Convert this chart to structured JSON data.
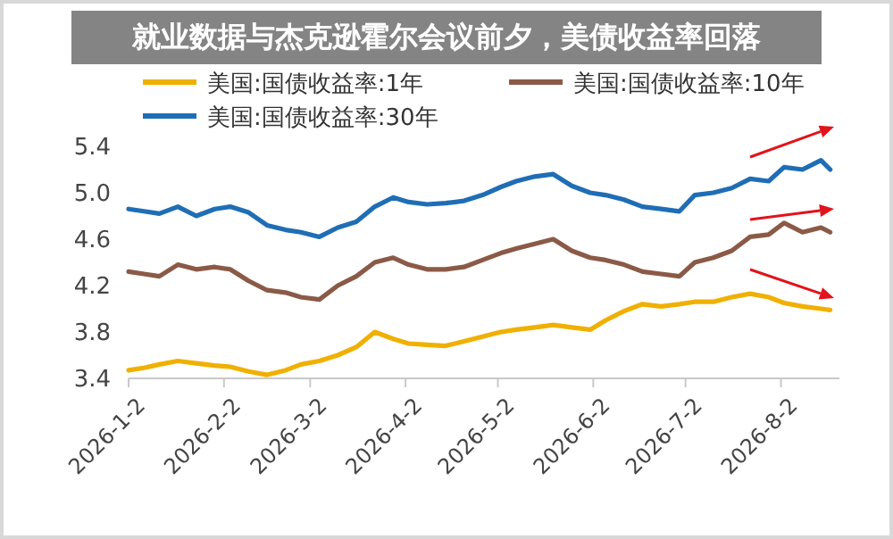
{
  "chart_data": {
    "type": "line",
    "title": "就业数据与杰克逊霍尔会议前夕，美债收益率回落",
    "x": [
      "2026-01-02",
      "2026-01-07",
      "2026-01-12",
      "2026-01-18",
      "2026-01-24",
      "2026-01-30",
      "2026-02-04",
      "2026-02-10",
      "2026-02-16",
      "2026-02-22",
      "2026-02-27",
      "2026-03-05",
      "2026-03-11",
      "2026-03-17",
      "2026-03-23",
      "2026-03-29",
      "2026-04-03",
      "2026-04-09",
      "2026-04-15",
      "2026-04-21",
      "2026-04-27",
      "2026-05-03",
      "2026-05-08",
      "2026-05-14",
      "2026-05-20",
      "2026-05-26",
      "2026-06-01",
      "2026-06-06",
      "2026-06-12",
      "2026-06-18",
      "2026-06-24",
      "2026-06-30",
      "2026-07-05",
      "2026-07-11",
      "2026-07-17",
      "2026-07-23",
      "2026-07-29",
      "2026-08-03",
      "2026-08-09",
      "2026-08-15",
      "2026-08-18"
    ],
    "series": [
      {
        "name": "美国:国债收益率:1年",
        "color": "#f0b000",
        "values": [
          3.47,
          3.49,
          3.52,
          3.55,
          3.53,
          3.51,
          3.5,
          3.46,
          3.43,
          3.47,
          3.52,
          3.55,
          3.6,
          3.67,
          3.8,
          3.74,
          3.7,
          3.69,
          3.68,
          3.72,
          3.76,
          3.8,
          3.82,
          3.84,
          3.86,
          3.84,
          3.82,
          3.9,
          3.98,
          4.04,
          4.02,
          4.04,
          4.06,
          4.06,
          4.1,
          4.13,
          4.1,
          4.05,
          4.02,
          4.0,
          3.99
        ]
      },
      {
        "name": "美国:国债收益率:10年",
        "color": "#8b5a47",
        "values": [
          4.32,
          4.3,
          4.28,
          4.38,
          4.34,
          4.36,
          4.34,
          4.24,
          4.16,
          4.14,
          4.1,
          4.08,
          4.2,
          4.28,
          4.4,
          4.44,
          4.38,
          4.34,
          4.34,
          4.36,
          4.42,
          4.48,
          4.52,
          4.56,
          4.6,
          4.5,
          4.44,
          4.42,
          4.38,
          4.32,
          4.3,
          4.28,
          4.4,
          4.44,
          4.5,
          4.62,
          4.64,
          4.74,
          4.66,
          4.7,
          4.66
        ]
      },
      {
        "name": "美国:国债收益率:30年",
        "color": "#1f6eb5",
        "values": [
          4.86,
          4.84,
          4.82,
          4.88,
          4.8,
          4.86,
          4.88,
          4.83,
          4.72,
          4.68,
          4.66,
          4.62,
          4.7,
          4.75,
          4.88,
          4.96,
          4.92,
          4.9,
          4.91,
          4.93,
          4.98,
          5.05,
          5.1,
          5.14,
          5.16,
          5.06,
          5.0,
          4.98,
          4.94,
          4.88,
          4.86,
          4.84,
          4.98,
          5.0,
          5.04,
          5.12,
          5.1,
          5.22,
          5.2,
          5.28,
          5.2
        ]
      }
    ],
    "xlim": [
      "2026-01-02",
      "2026-08-21"
    ],
    "xticks": [
      {
        "value": "2026-01-02",
        "label": "2026-1-2"
      },
      {
        "value": "2026-02-02",
        "label": "2026-2-2"
      },
      {
        "value": "2026-03-02",
        "label": "2026-3-2"
      },
      {
        "value": "2026-04-02",
        "label": "2026-4-2"
      },
      {
        "value": "2026-05-02",
        "label": "2026-5-2"
      },
      {
        "value": "2026-06-02",
        "label": "2026-6-2"
      },
      {
        "value": "2026-07-02",
        "label": "2026-7-2"
      },
      {
        "value": "2026-08-02",
        "label": "2026-8-2"
      }
    ],
    "ylim": [
      3.4,
      5.4
    ],
    "yticks": [
      3.4,
      3.8,
      4.2,
      4.6,
      {
        "value": 5,
        "label": "5.0"
      },
      5.4
    ],
    "legend": "top",
    "grid": false
  }
}
